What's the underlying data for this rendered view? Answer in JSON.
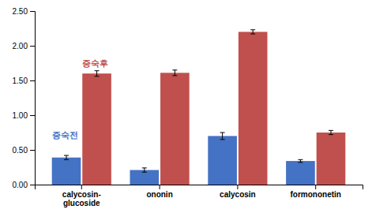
{
  "chart_data": {
    "type": "bar",
    "categories": [
      "calycosin-\nglucoside",
      "ononin",
      "calycosin",
      "formononetin"
    ],
    "series": [
      {
        "name": "증숙전",
        "color": "#4472C4",
        "values": [
          0.39,
          0.21,
          0.7,
          0.34
        ],
        "errors": [
          0.03,
          0.03,
          0.05,
          0.02
        ]
      },
      {
        "name": "증숙후",
        "color": "#C0504D",
        "values": [
          1.6,
          1.61,
          2.2,
          0.75
        ],
        "errors": [
          0.04,
          0.04,
          0.03,
          0.03
        ]
      }
    ],
    "ylim": [
      0,
      2.5
    ],
    "yticks": [
      {
        "value": 0,
        "label": "0.00"
      },
      {
        "value": 0.5,
        "label": "0.50"
      },
      {
        "value": 1,
        "label": "1.00"
      },
      {
        "value": 1.5,
        "label": "1.50"
      },
      {
        "value": 2,
        "label": "2.00"
      },
      {
        "value": 2.5,
        "label": "2.50"
      }
    ],
    "grid": false
  }
}
